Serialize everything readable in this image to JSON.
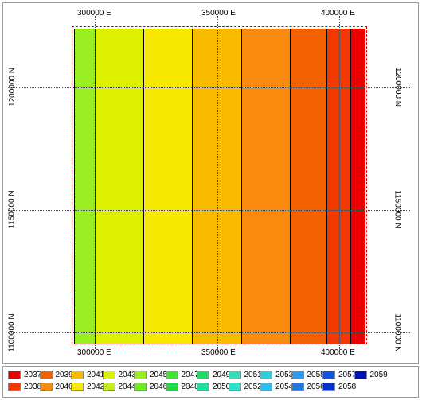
{
  "map": {
    "x_ticks": [
      {
        "label": "300000 E",
        "value": 300000
      },
      {
        "label": "350000 E",
        "value": 350000
      },
      {
        "label": "400000 E",
        "value": 400000
      }
    ],
    "y_ticks": [
      {
        "label": "1200000 N",
        "value": 1200000
      },
      {
        "label": "1150000 N",
        "value": 1150000
      },
      {
        "label": "1100000 N",
        "value": 1100000
      }
    ],
    "bands": [
      {
        "year": "2045",
        "color": "#99ee22"
      },
      {
        "year": "2043",
        "color": "#ddf000"
      },
      {
        "year": "2042",
        "color": "#f6e800"
      },
      {
        "year": "2041",
        "color": "#f9bb00"
      },
      {
        "year": "2040",
        "color": "#f88a10"
      },
      {
        "year": "2039",
        "color": "#f26000"
      },
      {
        "year": "2038",
        "color": "#f03a00"
      },
      {
        "year": "2037",
        "color": "#ee0000"
      }
    ]
  },
  "legend": [
    {
      "label": "2037",
      "color": "#ee0000"
    },
    {
      "label": "2038",
      "color": "#f03a00"
    },
    {
      "label": "2039",
      "color": "#f26000"
    },
    {
      "label": "2040",
      "color": "#f88a10"
    },
    {
      "label": "2041",
      "color": "#f9bb00"
    },
    {
      "label": "2042",
      "color": "#f6e800"
    },
    {
      "label": "2043",
      "color": "#ddf000"
    },
    {
      "label": "2044",
      "color": "#c4ee22"
    },
    {
      "label": "2045",
      "color": "#99ee22"
    },
    {
      "label": "2046",
      "color": "#6ee822"
    },
    {
      "label": "2047",
      "color": "#44e033"
    },
    {
      "label": "2048",
      "color": "#22d844"
    },
    {
      "label": "2049",
      "color": "#22d866"
    },
    {
      "label": "2050",
      "color": "#22dd99"
    },
    {
      "label": "2051",
      "color": "#33ddbb"
    },
    {
      "label": "2052",
      "color": "#33ddcc"
    },
    {
      "label": "2053",
      "color": "#33ccdd"
    },
    {
      "label": "2054",
      "color": "#33bbee"
    },
    {
      "label": "2055",
      "color": "#3399ee"
    },
    {
      "label": "2056",
      "color": "#2277dd"
    },
    {
      "label": "2057",
      "color": "#1155dd"
    },
    {
      "label": "2058",
      "color": "#0033cc"
    },
    {
      "label": "2059",
      "color": "#0011bb"
    }
  ]
}
